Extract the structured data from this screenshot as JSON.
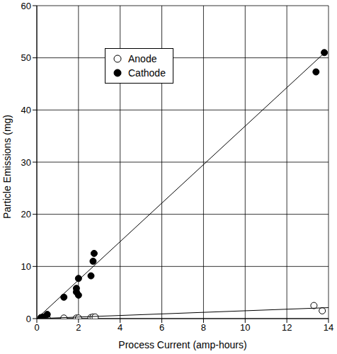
{
  "chart_data": {
    "type": "scatter",
    "xlabel": "Process Current (amp-hours)",
    "ylabel": "Particle Emissions (mg)",
    "xlim": [
      0,
      14
    ],
    "xticks": [
      0,
      2,
      4,
      6,
      8,
      10,
      12,
      14
    ],
    "ylim": [
      0,
      60
    ],
    "yticks": [
      0,
      10,
      20,
      30,
      40,
      50,
      60
    ],
    "grid": true,
    "legend": "upper left",
    "series": [
      {
        "name": "Anode",
        "type": "scatter",
        "marker": "open_circle",
        "color": "#000000",
        "x": [
          0.3,
          0.5,
          1.3,
          1.9,
          2.0,
          2.6,
          2.7,
          2.8,
          13.3,
          13.7
        ],
        "values": [
          0,
          0,
          0.1,
          0.1,
          0.1,
          0.2,
          0.3,
          0.3,
          2.5,
          1.5
        ]
      },
      {
        "name": "Cathode",
        "type": "scatter",
        "marker": "circle",
        "color": "#000000",
        "x": [
          0.2,
          0.3,
          0.5,
          1.3,
          1.9,
          1.9,
          2.0,
          2.0,
          2.6,
          2.7,
          2.75,
          13.4,
          13.8
        ],
        "values": [
          0.2,
          0.3,
          0.8,
          4.1,
          5.1,
          5.8,
          7.7,
          4.5,
          8.2,
          11,
          12.5,
          47.3,
          51
        ]
      },
      {
        "type": "line",
        "color": "#000000",
        "x": [
          0,
          13.9
        ],
        "values": [
          0,
          51.3
        ]
      },
      {
        "type": "line",
        "color": "#000000",
        "x": [
          0,
          14
        ],
        "values": [
          0,
          2.1
        ]
      }
    ]
  }
}
